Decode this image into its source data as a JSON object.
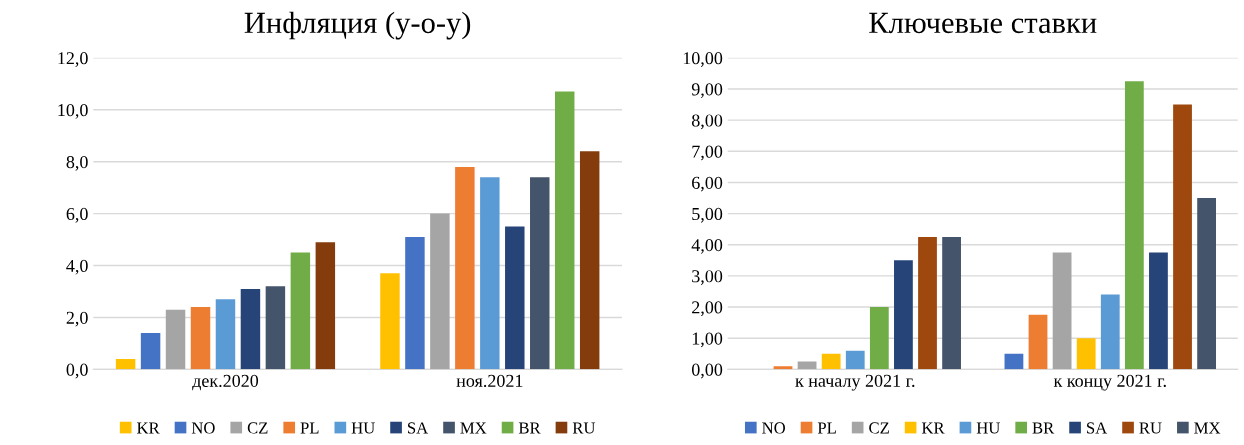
{
  "chart_data": [
    {
      "type": "bar",
      "title": "Инфляция (у-о-у)",
      "categories": [
        "дек.2020",
        "ноя.2021"
      ],
      "series": [
        {
          "name": "KR",
          "color": "#ffc000",
          "values": [
            0.4,
            3.7
          ]
        },
        {
          "name": "NO",
          "color": "#4472c4",
          "values": [
            1.4,
            5.1
          ]
        },
        {
          "name": "CZ",
          "color": "#a5a5a5",
          "values": [
            2.3,
            6.0
          ]
        },
        {
          "name": "PL",
          "color": "#ed7d31",
          "values": [
            2.4,
            7.8
          ]
        },
        {
          "name": "HU",
          "color": "#5b9bd5",
          "values": [
            2.7,
            7.4
          ]
        },
        {
          "name": "SA",
          "color": "#264478",
          "values": [
            3.1,
            5.5
          ]
        },
        {
          "name": "MX",
          "color": "#44546a",
          "values": [
            3.2,
            7.4
          ]
        },
        {
          "name": "BR",
          "color": "#70ad47",
          "values": [
            4.5,
            10.7
          ]
        },
        {
          "name": "RU",
          "color": "#843c0c",
          "values": [
            4.9,
            8.4
          ]
        }
      ],
      "ylim": [
        0,
        12
      ],
      "yticks": [
        {
          "value": 0,
          "label": "0,0"
        },
        {
          "value": 2,
          "label": "2,0"
        },
        {
          "value": 4,
          "label": "4,0"
        },
        {
          "value": 6,
          "label": "6,0"
        },
        {
          "value": 8,
          "label": "8,0"
        },
        {
          "value": 10,
          "label": "10,0"
        },
        {
          "value": 12,
          "label": "12,0"
        }
      ],
      "grid": "y",
      "legend": "bottom"
    },
    {
      "type": "bar",
      "title": "Ключевые ставки",
      "categories": [
        "к началу 2021 г.",
        "к концу 2021 г."
      ],
      "series": [
        {
          "name": "NO",
          "color": "#4472c4",
          "values": [
            0,
            0.5
          ]
        },
        {
          "name": "PL",
          "color": "#ed7d31",
          "values": [
            0.1,
            1.75
          ]
        },
        {
          "name": "CZ",
          "color": "#a5a5a5",
          "values": [
            0.25,
            3.75
          ]
        },
        {
          "name": "KR",
          "color": "#ffc000",
          "values": [
            0.5,
            1.0
          ]
        },
        {
          "name": "HU",
          "color": "#5b9bd5",
          "values": [
            0.6,
            2.4
          ]
        },
        {
          "name": "BR",
          "color": "#70ad47",
          "values": [
            2.0,
            9.25
          ]
        },
        {
          "name": "SA",
          "color": "#264478",
          "values": [
            3.5,
            3.75
          ]
        },
        {
          "name": "RU",
          "color": "#9e480e",
          "values": [
            4.25,
            8.5
          ]
        },
        {
          "name": "MX",
          "color": "#44546a",
          "values": [
            4.25,
            5.5
          ]
        }
      ],
      "ylim": [
        0,
        10
      ],
      "yticks": [
        {
          "value": 0,
          "label": "0,00"
        },
        {
          "value": 1,
          "label": "1,00"
        },
        {
          "value": 2,
          "label": "2,00"
        },
        {
          "value": 3,
          "label": "3,00"
        },
        {
          "value": 4,
          "label": "4,00"
        },
        {
          "value": 5,
          "label": "5,00"
        },
        {
          "value": 6,
          "label": "6,00"
        },
        {
          "value": 7,
          "label": "7,00"
        },
        {
          "value": 8,
          "label": "8,00"
        },
        {
          "value": 9,
          "label": "9,00"
        },
        {
          "value": 10,
          "label": "10,00"
        }
      ],
      "grid": "y",
      "legend": "bottom"
    }
  ]
}
